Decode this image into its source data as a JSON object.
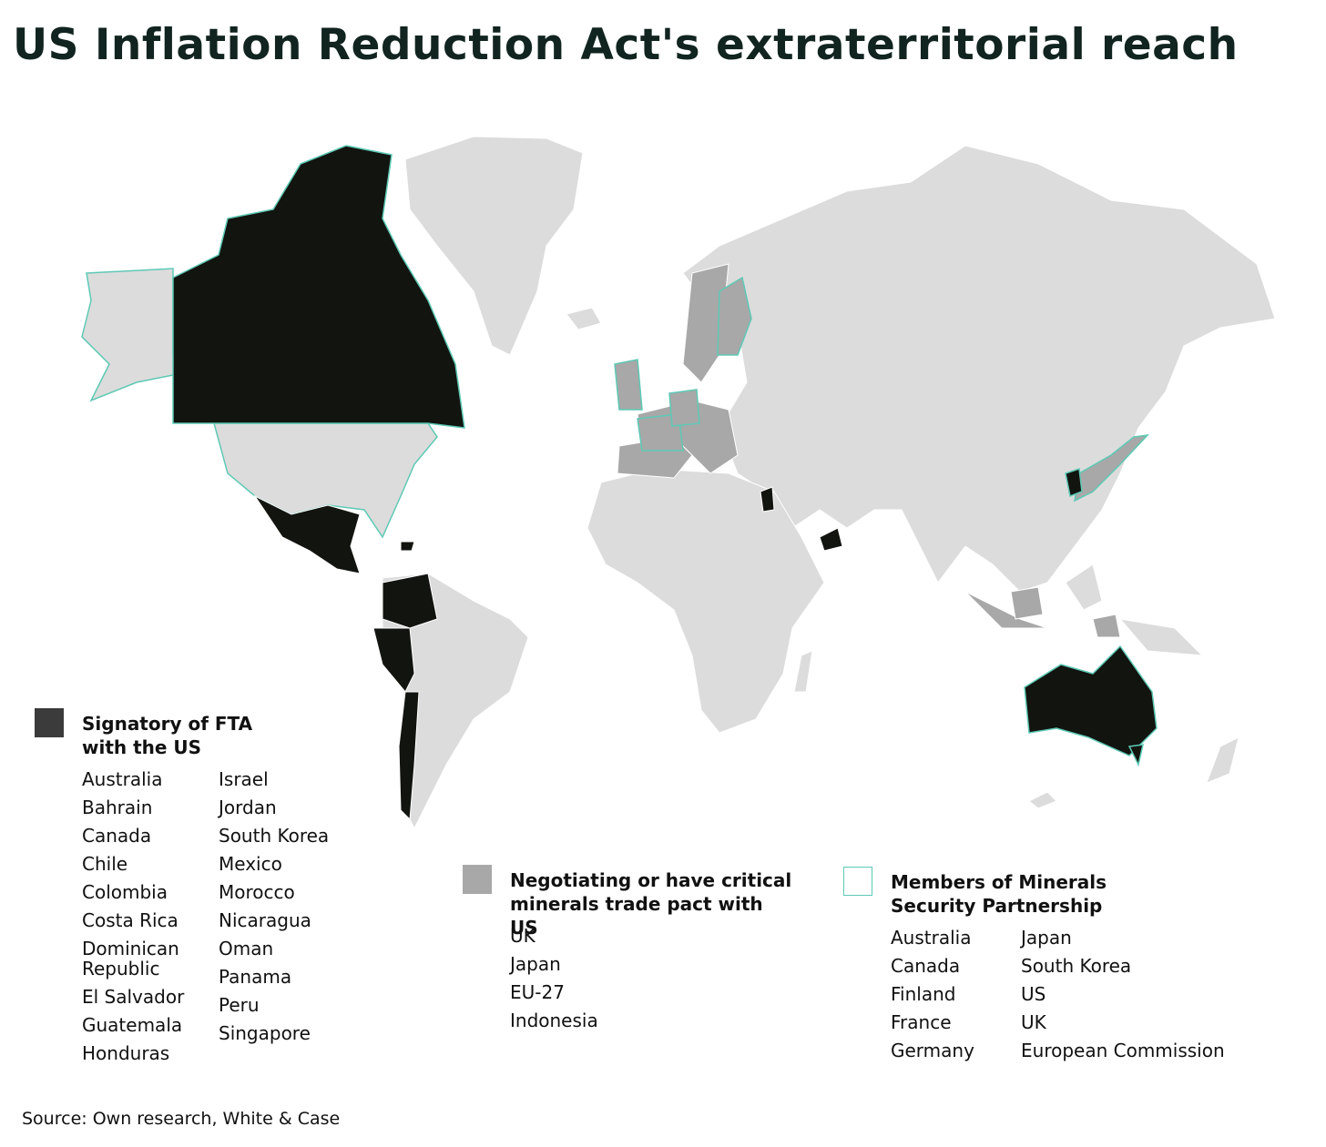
{
  "title": "US Inflation Reduction Act's extraterritorial reach",
  "legends": [
    {
      "heading": "Signatory of FTA with the US",
      "columns": [
        [
          "Australia",
          "Bahrain",
          "Canada",
          "Chile",
          "Colombia",
          "Costa Rica",
          "Dominican Republic",
          "El Salvador",
          "Guatemala",
          "Honduras"
        ],
        [
          "Israel",
          "Jordan",
          "South Korea",
          "Mexico",
          "Morocco",
          "Nicaragua",
          "Oman",
          "Panama",
          "Peru",
          "Singapore"
        ]
      ]
    },
    {
      "heading": "Negotiating or have critical minerals trade pact with US",
      "columns": [
        [
          "UK",
          "Japan",
          "EU-27",
          "Indonesia"
        ]
      ]
    },
    {
      "heading": "Members of Minerals Security Partnership",
      "columns": [
        [
          "Australia",
          "Canada",
          "Finland",
          "France",
          "Germany"
        ],
        [
          "Japan",
          "South Korea",
          "US",
          "UK",
          "European Commission"
        ]
      ]
    }
  ],
  "source": "Source: Own research, White & Case"
}
